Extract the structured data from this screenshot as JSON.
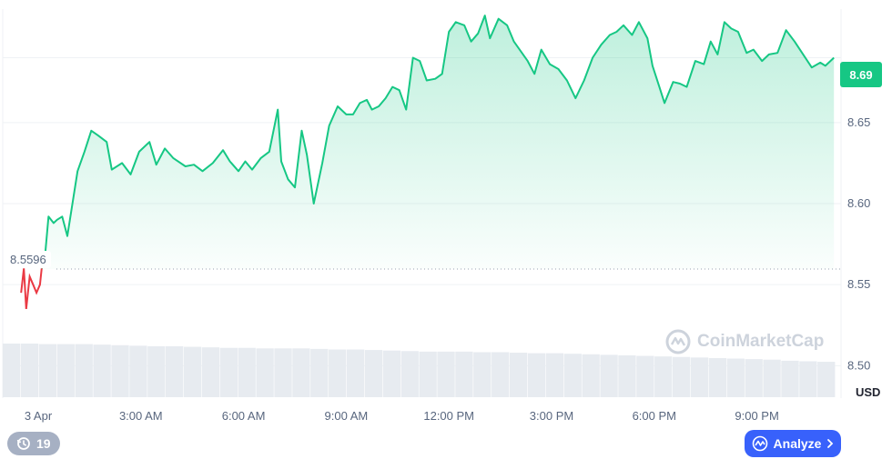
{
  "chart_data": {
    "type": "area",
    "currency_label": "USD",
    "current_price_label": "8.69",
    "open_price_label": "8.5596",
    "open_price": 8.5596,
    "ylim": [
      8.48,
      8.72
    ],
    "y_ticks": [
      "8.69",
      "8.65",
      "8.60",
      "8.55",
      "8.50"
    ],
    "y_tick_values": [
      8.69,
      8.65,
      8.6,
      8.55,
      8.5
    ],
    "x_ticks": [
      "3 Apr",
      "3:00 AM",
      "6:00 AM",
      "9:00 AM",
      "12:00 PM",
      "3:00 PM",
      "6:00 PM",
      "9:00 PM"
    ],
    "x_tick_hours": [
      0,
      3,
      6,
      9,
      12,
      15,
      18,
      21
    ],
    "xlim_hours": [
      -0.5,
      23.9
    ],
    "price_series": [
      [
        -0.5,
        8.545
      ],
      [
        -0.42,
        8.56
      ],
      [
        -0.35,
        8.535
      ],
      [
        -0.25,
        8.555
      ],
      [
        -0.15,
        8.55
      ],
      [
        -0.05,
        8.545
      ],
      [
        0.05,
        8.55
      ],
      [
        0.1,
        8.56
      ],
      [
        0.2,
        8.568
      ],
      [
        0.3,
        8.592
      ],
      [
        0.45,
        8.588
      ],
      [
        0.55,
        8.59
      ],
      [
        0.7,
        8.592
      ],
      [
        0.85,
        8.58
      ],
      [
        1.0,
        8.6
      ],
      [
        1.15,
        8.62
      ],
      [
        1.35,
        8.632
      ],
      [
        1.55,
        8.645
      ],
      [
        1.75,
        8.642
      ],
      [
        2.0,
        8.638
      ],
      [
        2.15,
        8.621
      ],
      [
        2.45,
        8.625
      ],
      [
        2.7,
        8.618
      ],
      [
        2.95,
        8.632
      ],
      [
        3.25,
        8.638
      ],
      [
        3.45,
        8.624
      ],
      [
        3.7,
        8.634
      ],
      [
        3.95,
        8.628
      ],
      [
        4.3,
        8.623
      ],
      [
        4.55,
        8.624
      ],
      [
        4.8,
        8.62
      ],
      [
        5.1,
        8.625
      ],
      [
        5.4,
        8.633
      ],
      [
        5.6,
        8.626
      ],
      [
        5.85,
        8.62
      ],
      [
        6.05,
        8.626
      ],
      [
        6.25,
        8.621
      ],
      [
        6.5,
        8.628
      ],
      [
        6.75,
        8.632
      ],
      [
        7.0,
        8.658
      ],
      [
        7.1,
        8.626
      ],
      [
        7.3,
        8.615
      ],
      [
        7.5,
        8.61
      ],
      [
        7.7,
        8.645
      ],
      [
        7.85,
        8.63
      ],
      [
        8.05,
        8.6
      ],
      [
        8.3,
        8.625
      ],
      [
        8.5,
        8.648
      ],
      [
        8.75,
        8.66
      ],
      [
        9.0,
        8.655
      ],
      [
        9.2,
        8.655
      ],
      [
        9.4,
        8.662
      ],
      [
        9.6,
        8.664
      ],
      [
        9.75,
        8.658
      ],
      [
        9.95,
        8.66
      ],
      [
        10.15,
        8.665
      ],
      [
        10.35,
        8.672
      ],
      [
        10.55,
        8.67
      ],
      [
        10.75,
        8.658
      ],
      [
        10.95,
        8.69
      ],
      [
        11.15,
        8.688
      ],
      [
        11.35,
        8.676
      ],
      [
        11.6,
        8.677
      ],
      [
        11.8,
        8.68
      ],
      [
        12.0,
        8.706
      ],
      [
        12.2,
        8.712
      ],
      [
        12.45,
        8.71
      ],
      [
        12.65,
        8.7
      ],
      [
        12.85,
        8.705
      ],
      [
        13.05,
        8.716
      ],
      [
        13.2,
        8.702
      ],
      [
        13.45,
        8.714
      ],
      [
        13.7,
        8.71
      ],
      [
        13.9,
        8.7
      ],
      [
        14.1,
        8.694
      ],
      [
        14.3,
        8.688
      ],
      [
        14.5,
        8.68
      ],
      [
        14.7,
        8.695
      ],
      [
        14.95,
        8.686
      ],
      [
        15.2,
        8.683
      ],
      [
        15.45,
        8.676
      ],
      [
        15.7,
        8.665
      ],
      [
        15.95,
        8.676
      ],
      [
        16.2,
        8.69
      ],
      [
        16.45,
        8.698
      ],
      [
        16.7,
        8.704
      ],
      [
        16.9,
        8.706
      ],
      [
        17.1,
        8.71
      ],
      [
        17.35,
        8.704
      ],
      [
        17.55,
        8.712
      ],
      [
        17.8,
        8.702
      ],
      [
        17.95,
        8.685
      ],
      [
        18.15,
        8.672
      ],
      [
        18.3,
        8.662
      ],
      [
        18.55,
        8.675
      ],
      [
        18.75,
        8.674
      ],
      [
        18.95,
        8.672
      ],
      [
        19.2,
        8.688
      ],
      [
        19.45,
        8.686
      ],
      [
        19.65,
        8.7
      ],
      [
        19.85,
        8.692
      ],
      [
        20.05,
        8.712
      ],
      [
        20.25,
        8.708
      ],
      [
        20.45,
        8.706
      ],
      [
        20.7,
        8.693
      ],
      [
        20.9,
        8.695
      ],
      [
        21.15,
        8.688
      ],
      [
        21.35,
        8.692
      ],
      [
        21.6,
        8.693
      ],
      [
        21.85,
        8.707
      ],
      [
        22.1,
        8.7
      ],
      [
        22.35,
        8.692
      ],
      [
        22.6,
        8.684
      ],
      [
        22.85,
        8.687
      ],
      [
        23.0,
        8.685
      ],
      [
        23.25,
        8.69
      ]
    ],
    "volume_series_relative": [
      1.0,
      1.0,
      0.99,
      0.99,
      0.99,
      0.98,
      0.97,
      0.96,
      0.95,
      0.95,
      0.94,
      0.93,
      0.92,
      0.92,
      0.91,
      0.91,
      0.91,
      0.9,
      0.89,
      0.89,
      0.88,
      0.87,
      0.86,
      0.85,
      0.85,
      0.85,
      0.84,
      0.84,
      0.83,
      0.82,
      0.82,
      0.81,
      0.8,
      0.79,
      0.78,
      0.77,
      0.76,
      0.75,
      0.74,
      0.73,
      0.72,
      0.71,
      0.7,
      0.68,
      0.67,
      0.66
    ],
    "colors": {
      "up_line": "#16c784",
      "down_line": "#ea3943",
      "grid": "#eff2f5",
      "volume": "#e7ebf0",
      "baseline": "#9aa3b2"
    }
  },
  "controls": {
    "history_label": "19",
    "history_icon": "history-clock-icon",
    "analyze_label": "Analyze",
    "analyze_icon": "analyze-chart-icon",
    "analyze_chevron_icon": "chevron-right-icon"
  },
  "watermark": {
    "text": "CoinMarketCap",
    "icon": "coinmarketcap-logo-icon"
  }
}
